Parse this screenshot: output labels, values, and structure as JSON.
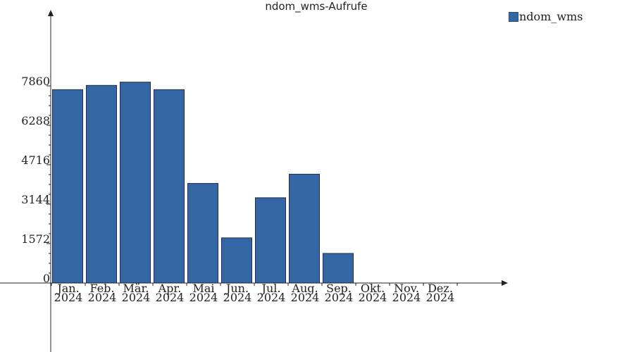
{
  "chart_data": {
    "type": "bar",
    "title": "ndom_wms-Aufrufe",
    "categories": [
      [
        "Jan.",
        "2024"
      ],
      [
        "Feb.",
        "2024"
      ],
      [
        "Mär.",
        "2024"
      ],
      [
        "Apr.",
        "2024"
      ],
      [
        "Mai",
        "2024"
      ],
      [
        "Jun.",
        "2024"
      ],
      [
        "Jul.",
        "2024"
      ],
      [
        "Aug.",
        "2024"
      ],
      [
        "Sep.",
        "2024"
      ],
      [
        "Okt.",
        "2024"
      ],
      [
        "Nov.",
        "2024"
      ],
      [
        "Dez.",
        "2024"
      ]
    ],
    "series": [
      {
        "name": "ndom_wms",
        "color": "#3465a4",
        "values": [
          7710,
          7880,
          8010,
          7710,
          3970,
          1800,
          3400,
          4340,
          1180,
          0,
          0,
          0
        ]
      }
    ],
    "yticks": [
      0,
      1572,
      3144,
      4716,
      6288,
      7860
    ],
    "ylim": [
      0,
      9500
    ],
    "legend_position": "top-right",
    "grid": false
  }
}
